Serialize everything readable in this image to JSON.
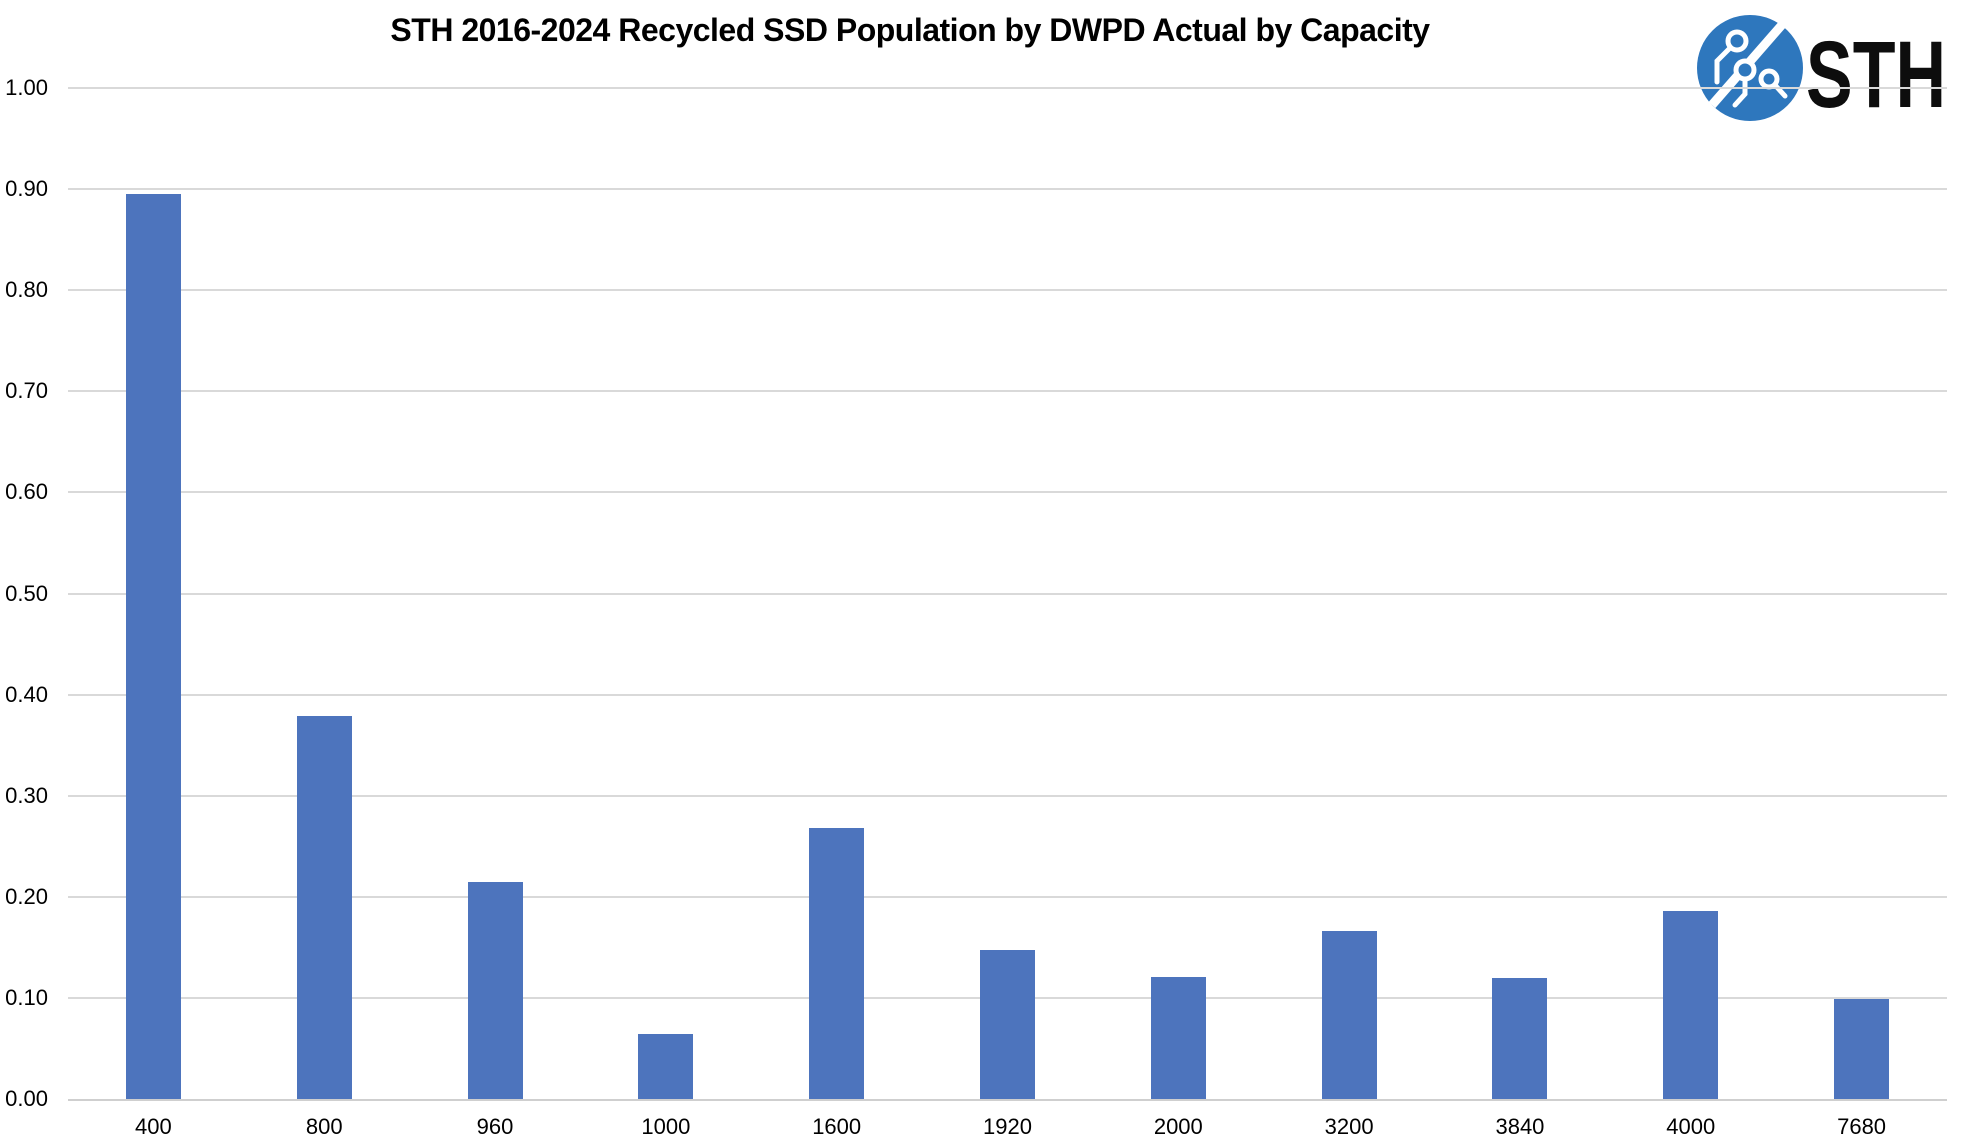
{
  "title": "STH 2016-2024 Recycled SSD Population by DWPD Actual by Capacity",
  "logo": {
    "text": "STH",
    "circle_color": "#2e77bd",
    "text_color": "#0d0d0d"
  },
  "chart_data": {
    "type": "bar",
    "title": "STH 2016-2024 Recycled SSD Population by DWPD Actual by Capacity",
    "categories": [
      "400",
      "800",
      "960",
      "1000",
      "1600",
      "1920",
      "2000",
      "3200",
      "3840",
      "4000",
      "7680"
    ],
    "values": [
      0.895,
      0.379,
      0.215,
      0.064,
      0.268,
      0.147,
      0.121,
      0.166,
      0.12,
      0.186,
      0.099
    ],
    "xlabel": "",
    "ylabel": "",
    "ylim": [
      0,
      1.0
    ],
    "ytick_step": 0.1,
    "ytick_labels": [
      "0.00",
      "0.10",
      "0.20",
      "0.30",
      "0.40",
      "0.50",
      "0.60",
      "0.70",
      "0.80",
      "0.90",
      "1.00"
    ],
    "grid": "horizontal",
    "legend": "none",
    "bar_color": "#4d74bd",
    "gridline_color": "#d9d9d9",
    "axis_line_color": "#cfcfcf",
    "background_color": "#ffffff"
  }
}
